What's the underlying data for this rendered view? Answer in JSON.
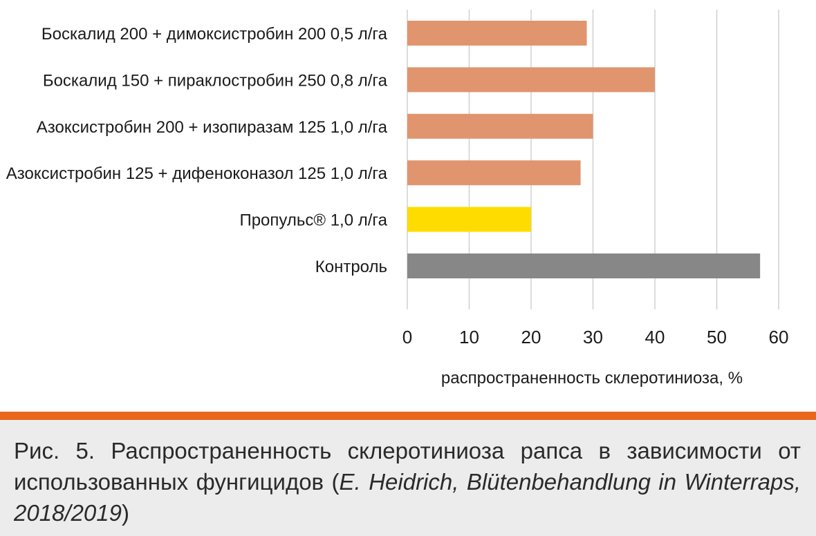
{
  "colors": {
    "fungicide_bar": "#E1956E",
    "highlight_bar": "#FFDC00",
    "control_bar": "#878787",
    "grid": "#D0D0D0",
    "divider": "#E8671C",
    "caption_bg": "#ECECEC"
  },
  "chart_data": {
    "type": "bar",
    "orientation": "horizontal",
    "categories": [
      "Боскалид 200 + димоксистробин 200 0,5 л/га",
      "Боскалид 150 + пираклостробин 250 0,8 л/га",
      "Азоксистробин 200 + изопиразам 125 1,0 л/га",
      "Азоксистробин 125 + дифеноконазол 125 1,0 л/га",
      "Пропульс® 1,0 л/га",
      "Контроль"
    ],
    "values": [
      29,
      40,
      30,
      28,
      20,
      57
    ],
    "bar_colors": [
      "#E1956E",
      "#E1956E",
      "#E1956E",
      "#E1956E",
      "#FFDC00",
      "#878787"
    ],
    "xlabel": "распространенность склеротиниоза, %",
    "xlim": [
      0,
      60
    ],
    "xticks": [
      "0",
      "10",
      "20",
      "30",
      "40",
      "50",
      "60"
    ],
    "grid": true,
    "legend": "none"
  },
  "caption": {
    "text": "Рис. 5. Распространенность  склеротиниоза рапса в зависимости от использованных фунгицидов (",
    "source_italic": "E. Heidrich, Blütenbehandlung in Winterraps, 2018/2019",
    "closing": ")"
  }
}
